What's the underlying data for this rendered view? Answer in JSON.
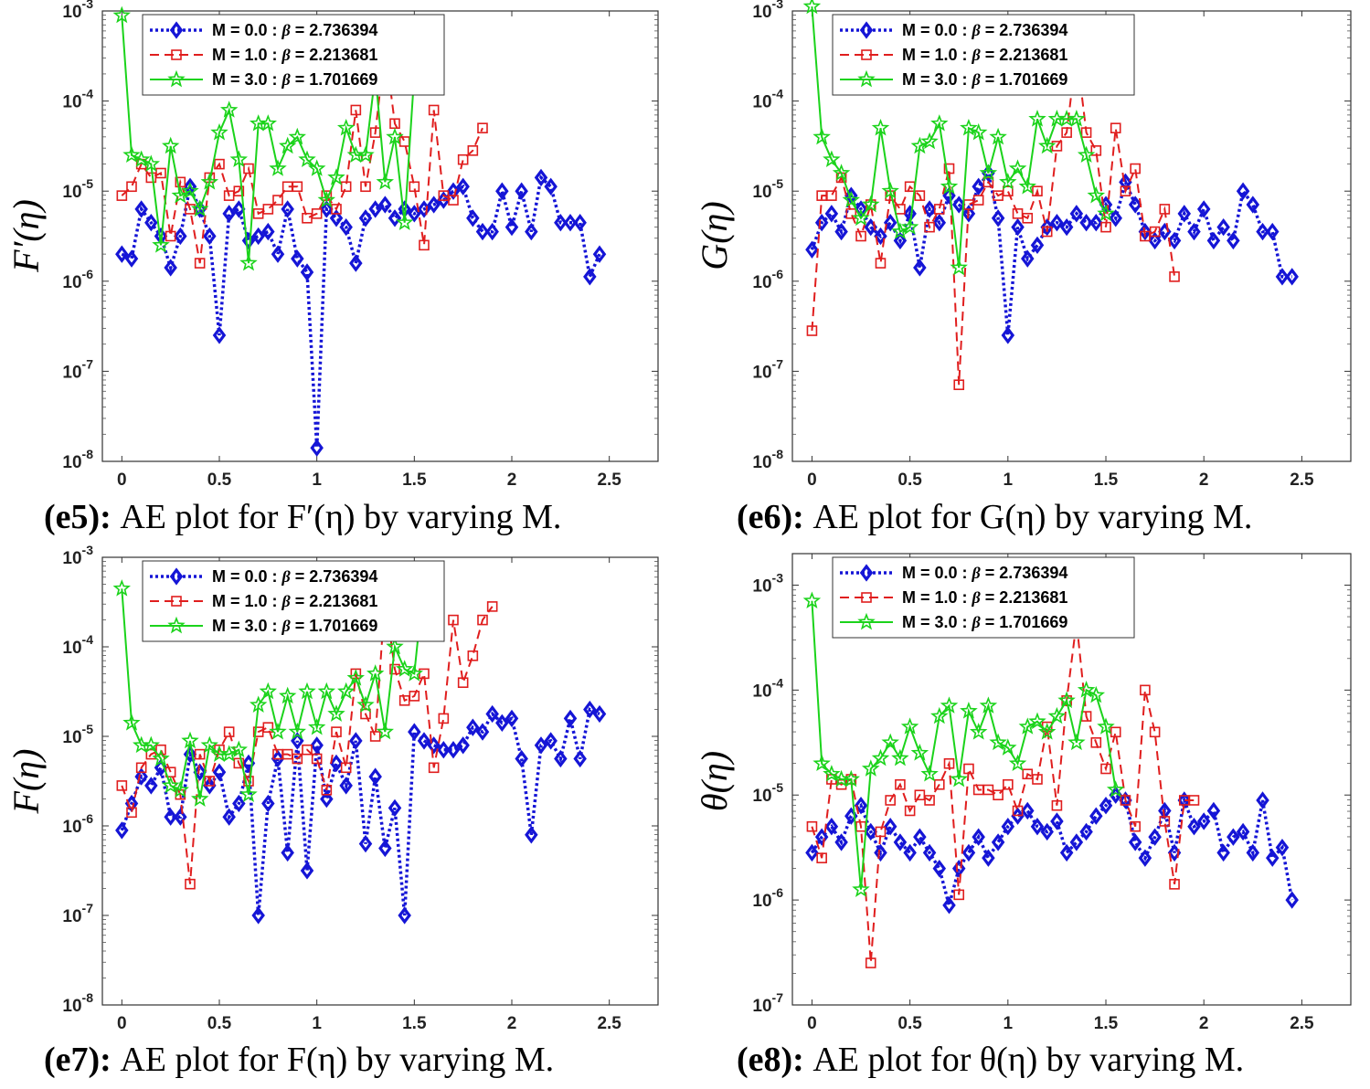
{
  "chart_data": [
    {
      "type": "line",
      "panel": "e5",
      "caption": {
        "tag": "(e5):",
        "text": "AE plot for F′(η) by varying M."
      },
      "ylabel": "F′(η)",
      "xlabel": "",
      "xlim": [
        -0.1,
        2.75
      ],
      "ylim_exp": [
        -8,
        -3
      ],
      "yscale": "log",
      "xticks": [
        "0",
        "0.5",
        "1",
        "1.5",
        "2",
        "2.5"
      ],
      "yticks": [
        "10-8",
        "10-7",
        "10-6",
        "10-5",
        "10-4",
        "10-3"
      ],
      "legend_position": "top-left",
      "series": [
        {
          "name": "M = 0.0 : β = 2.736394",
          "x0": 0,
          "dx": 0.05,
          "log10": [
            -5.7,
            -5.75,
            -5.2,
            -5.35,
            -5.5,
            -5.85,
            -5.5,
            -4.95,
            -5.2,
            -5.5,
            -6.6,
            -5.25,
            -5.2,
            -5.55,
            -5.5,
            -5.45,
            -5.7,
            -5.2,
            -5.75,
            -5.9,
            -7.85,
            -5.2,
            -5.3,
            -5.4,
            -5.8,
            -5.3,
            -5.2,
            -5.15,
            -5.3,
            -5.2,
            -5.25,
            -5.2,
            -5.15,
            -5.1,
            -5.0,
            -4.95,
            -5.3,
            -5.45,
            -5.45,
            -5.0,
            -5.4,
            -5.0,
            -5.45,
            -4.85,
            -4.95,
            -5.35,
            -5.35,
            -5.35,
            -5.95,
            -5.7
          ]
        },
        {
          "name": "M = 1.0 : β = 2.213681",
          "x0": 0,
          "dx": 0.05,
          "log10": [
            -5.05,
            -4.95,
            -4.7,
            -4.85,
            -4.8,
            -5.5,
            -4.9,
            -5.2,
            -5.8,
            -4.85,
            -4.7,
            -5.05,
            -5.0,
            -4.75,
            -5.25,
            -5.2,
            -5.1,
            -4.95,
            -4.95,
            -5.3,
            -5.25,
            -5.05,
            -5.2,
            -4.95,
            -4.1,
            -4.95,
            -4.35,
            -3.4,
            -4.25,
            -4.45,
            -4.95,
            -5.6,
            -4.1,
            -5.05,
            -5.1,
            -4.65,
            -4.55,
            -4.3
          ]
        },
        {
          "name": "M = 3.0 : β = 1.701669",
          "x0": 0,
          "dx": 0.05,
          "log10": [
            -3.05,
            -4.6,
            -4.65,
            -4.7,
            -5.6,
            -4.5,
            -5.05,
            -5.0,
            -5.2,
            -4.9,
            -4.35,
            -4.1,
            -4.65,
            -5.8,
            -4.25,
            -4.25,
            -4.75,
            -4.5,
            -4.4,
            -4.65,
            -4.75,
            -5.1,
            -4.85,
            -4.3,
            -4.6,
            -4.6,
            -3.7,
            -4.9,
            -4.4,
            -5.35,
            -3.7
          ]
        }
      ]
    },
    {
      "type": "line",
      "panel": "e6",
      "caption": {
        "tag": "(e6):",
        "text": "AE plot for G(η) by varying M."
      },
      "ylabel": "G(η)",
      "xlabel": "",
      "xlim": [
        -0.1,
        2.75
      ],
      "ylim_exp": [
        -8,
        -3
      ],
      "yscale": "log",
      "xticks": [
        "0",
        "0.5",
        "1",
        "1.5",
        "2",
        "2.5"
      ],
      "yticks": [
        "10-8",
        "10-7",
        "10-6",
        "10-5",
        "10-4",
        "10-3"
      ],
      "legend_position": "top-left",
      "series": [
        {
          "name": "M = 0.0 : β = 2.736394",
          "x0": 0,
          "dx": 0.05,
          "log10": [
            -5.65,
            -5.35,
            -5.25,
            -5.45,
            -5.05,
            -5.2,
            -5.4,
            -5.5,
            -5.35,
            -5.55,
            -5.25,
            -5.85,
            -5.2,
            -5.35,
            -5.05,
            -5.15,
            -5.25,
            -4.95,
            -4.8,
            -5.3,
            -6.6,
            -5.4,
            -5.75,
            -5.6,
            -5.4,
            -5.35,
            -5.4,
            -5.25,
            -5.35,
            -5.35,
            -5.15,
            -5.3,
            -4.9,
            -5.15,
            -5.45,
            -5.55,
            -5.45,
            -5.55,
            -5.25,
            -5.45,
            -5.2,
            -5.55,
            -5.4,
            -5.55,
            -5.0,
            -5.15,
            -5.45,
            -5.45,
            -5.95,
            -5.95
          ]
        },
        {
          "name": "M = 1.0 : β = 2.213681",
          "x0": 0,
          "dx": 0.05,
          "log10": [
            -6.55,
            -5.05,
            -5.05,
            -4.85,
            -5.25,
            -5.5,
            -5.15,
            -5.8,
            -5.05,
            -5.2,
            -4.95,
            -5.05,
            -5.4,
            -5.2,
            -4.75,
            -7.15,
            -5.15,
            -5.1,
            -4.9,
            -5.05,
            -5.0,
            -5.25,
            -5.3,
            -5.0,
            -5.45,
            -4.5,
            -4.35,
            -3.45,
            -4.35,
            -4.55,
            -5.4,
            -4.3,
            -5.0,
            -4.75,
            -5.5,
            -5.45,
            -5.2,
            -5.95
          ]
        },
        {
          "name": "M = 3.0 : β = 1.701669",
          "x0": 0,
          "dx": 0.05,
          "log10": [
            -2.95,
            -4.4,
            -4.65,
            -4.8,
            -5.1,
            -5.3,
            -5.15,
            -4.3,
            -5.0,
            -5.45,
            -5.4,
            -4.5,
            -4.45,
            -4.25,
            -4.95,
            -5.85,
            -4.3,
            -4.35,
            -4.8,
            -4.4,
            -4.9,
            -4.75,
            -4.95,
            -4.2,
            -4.5,
            -4.2,
            -4.2,
            -4.2,
            -4.6,
            -5.05,
            -5.25
          ]
        }
      ]
    },
    {
      "type": "line",
      "panel": "e7",
      "caption": {
        "tag": "(e7):",
        "text": "AE plot for F(η) by varying M."
      },
      "ylabel": "F(η)",
      "xlabel": "",
      "xlim": [
        -0.1,
        2.75
      ],
      "ylim_exp": [
        -8,
        -3
      ],
      "yscale": "log",
      "xticks": [
        "0",
        "0.5",
        "1",
        "1.5",
        "2",
        "2.5"
      ],
      "yticks": [
        "10-8",
        "10-7",
        "10-6",
        "10-5",
        "10-4",
        "10-3"
      ],
      "legend_position": "top-left",
      "series": [
        {
          "name": "M = 0.0 : β = 2.736394",
          "x0": 0,
          "dx": 0.05,
          "log10": [
            -6.05,
            -5.75,
            -5.45,
            -5.55,
            -5.35,
            -5.9,
            -5.9,
            -5.2,
            -5.4,
            -5.55,
            -5.4,
            -5.9,
            -5.75,
            -5.3,
            -7.0,
            -5.75,
            -5.25,
            -6.3,
            -5.05,
            -6.5,
            -5.1,
            -5.7,
            -5.3,
            -5.55,
            -5.05,
            -6.2,
            -5.45,
            -6.25,
            -5.8,
            -7.0,
            -4.95,
            -5.05,
            -5.1,
            -5.15,
            -5.15,
            -5.1,
            -4.9,
            -4.95,
            -4.75,
            -4.85,
            -4.8,
            -5.25,
            -6.1,
            -5.1,
            -5.05,
            -5.25,
            -4.8,
            -5.25,
            -4.7,
            -4.75
          ]
        },
        {
          "name": "M = 1.0 : β = 2.213681",
          "x0": 0,
          "dx": 0.05,
          "log10": [
            -5.55,
            -5.85,
            -5.35,
            -5.2,
            -5.15,
            -5.4,
            -5.65,
            -6.65,
            -5.2,
            -5.5,
            -5.15,
            -4.95,
            -5.3,
            -5.5,
            -4.95,
            -4.9,
            -5.2,
            -5.2,
            -5.25,
            -5.15,
            -5.25,
            -5.6,
            -4.95,
            -5.35,
            -4.3,
            -4.75,
            -5.0,
            -3.45,
            -4.25,
            -4.6,
            -4.55,
            -4.3,
            -5.35,
            -4.8,
            -3.7,
            -4.4,
            -4.1,
            -3.7,
            -3.55
          ]
        },
        {
          "name": "M = 3.0 : β = 1.701669",
          "x0": 0,
          "dx": 0.05,
          "log10": [
            -3.35,
            -4.85,
            -5.1,
            -5.1,
            -5.25,
            -5.55,
            -5.6,
            -5.05,
            -5.7,
            -5.1,
            -5.2,
            -5.2,
            -5.15,
            -5.65,
            -4.65,
            -4.5,
            -4.95,
            -4.55,
            -4.95,
            -4.5,
            -4.9,
            -4.5,
            -4.75,
            -4.5,
            -4.35,
            -4.65,
            -4.3,
            -4.95,
            -4.0,
            -4.25,
            -4.3,
            -3.25
          ]
        }
      ]
    },
    {
      "type": "line",
      "panel": "e8",
      "caption": {
        "tag": "(e8):",
        "text": "AE plot for θ(η) by varying M."
      },
      "ylabel": "θ(η)",
      "xlabel": "",
      "xlim": [
        -0.1,
        2.75
      ],
      "ylim_exp": [
        -7,
        -2.7
      ],
      "yscale": "log",
      "xticks": [
        "0",
        "0.5",
        "1",
        "1.5",
        "2",
        "2.5"
      ],
      "yticks": [
        "10-7",
        "10-6",
        "10-5",
        "10-4",
        "10-3"
      ],
      "legend_position": "top-left",
      "series": [
        {
          "name": "M = 0.0 : β = 2.736394",
          "x0": 0,
          "dx": 0.05,
          "log10": [
            -5.55,
            -5.4,
            -5.3,
            -5.45,
            -5.2,
            -5.1,
            -5.35,
            -5.55,
            -5.3,
            -5.45,
            -5.55,
            -5.4,
            -5.55,
            -5.7,
            -6.05,
            -5.7,
            -5.55,
            -5.4,
            -5.6,
            -5.45,
            -5.3,
            -5.2,
            -5.15,
            -5.3,
            -5.35,
            -5.25,
            -5.55,
            -5.45,
            -5.35,
            -5.2,
            -5.1,
            -5.0,
            -5.05,
            -5.45,
            -5.6,
            -5.4,
            -5.15,
            -5.55,
            -5.05,
            -5.3,
            -5.25,
            -5.15,
            -5.55,
            -5.4,
            -5.35,
            -5.55,
            -5.05,
            -5.6,
            -5.5,
            -6.0
          ]
        },
        {
          "name": "M = 1.0 : β = 2.213681",
          "x0": 0,
          "dx": 0.05,
          "log10": [
            -5.3,
            -5.6,
            -4.85,
            -4.9,
            -4.85,
            -5.3,
            -6.6,
            -5.35,
            -5.05,
            -4.9,
            -5.15,
            -5.0,
            -5.05,
            -4.9,
            -4.7,
            -5.95,
            -4.75,
            -4.95,
            -4.95,
            -5.0,
            -4.9,
            -5.15,
            -4.8,
            -4.85,
            -4.35,
            -5.1,
            -4.1,
            -3.35,
            -4.25,
            -4.5,
            -4.75,
            -4.4,
            -5.05,
            -5.3,
            -4.0,
            -4.4,
            -5.25,
            -5.85,
            -5.05,
            -5.05
          ]
        },
        {
          "name": "M = 3.0 : β = 1.701669",
          "x0": 0,
          "dx": 0.05,
          "log10": [
            -3.15,
            -4.7,
            -4.8,
            -4.85,
            -4.85,
            -5.9,
            -4.75,
            -4.65,
            -4.5,
            -4.65,
            -4.35,
            -4.6,
            -4.8,
            -4.25,
            -4.15,
            -4.85,
            -4.2,
            -4.4,
            -4.15,
            -4.5,
            -4.55,
            -4.7,
            -4.35,
            -4.3,
            -4.4,
            -4.25,
            -4.1,
            -4.5,
            -4.0,
            -4.05,
            -4.35,
            -4.95
          ]
        }
      ]
    }
  ],
  "styles": {
    "series_colors": [
      "#1515d6",
      "#e01e1e",
      "#1bd31b"
    ],
    "series_markers": [
      "diamond",
      "square",
      "star"
    ]
  }
}
